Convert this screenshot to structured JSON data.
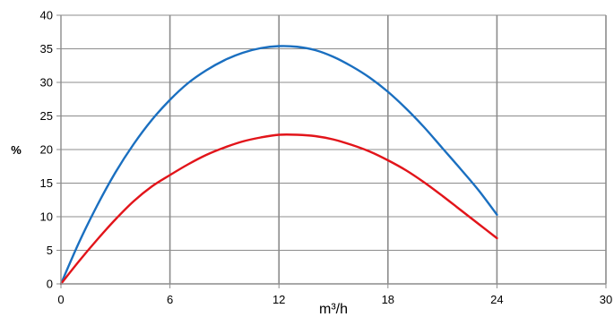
{
  "chart_data": {
    "type": "line",
    "title": "",
    "xlabel": "m³/h",
    "ylabel": "%",
    "xlim": [
      0,
      30
    ],
    "ylim": [
      0,
      40
    ],
    "xticks": [
      0,
      6,
      12,
      18,
      24,
      30
    ],
    "yticks": [
      0,
      5,
      10,
      15,
      20,
      25,
      30,
      35,
      40
    ],
    "grid": true,
    "legend": "none",
    "series": [
      {
        "color": "#1a6fc0",
        "x": [
          0,
          1,
          2,
          3,
          4,
          5,
          6,
          7,
          8,
          9,
          10,
          11,
          12,
          13,
          14,
          15,
          16,
          17,
          18,
          19,
          20,
          21,
          22,
          23,
          24
        ],
        "y": [
          0,
          6.2,
          11.7,
          16.6,
          20.8,
          24.4,
          27.4,
          29.9,
          31.8,
          33.3,
          34.4,
          35.1,
          35.4,
          35.3,
          34.8,
          33.8,
          32.4,
          30.7,
          28.6,
          26.1,
          23.3,
          20.2,
          17.1,
          13.9,
          10.3
        ]
      },
      {
        "color": "#e2141a",
        "x": [
          0,
          1,
          2,
          3,
          4,
          5,
          6,
          7,
          8,
          9,
          10,
          11,
          12,
          13,
          14,
          15,
          16,
          17,
          18,
          19,
          20,
          21,
          22,
          23,
          24
        ],
        "y": [
          0,
          3.4,
          6.6,
          9.6,
          12.3,
          14.5,
          16.2,
          17.8,
          19.2,
          20.3,
          21.2,
          21.8,
          22.2,
          22.2,
          22.0,
          21.5,
          20.7,
          19.7,
          18.4,
          16.9,
          15.1,
          13.1,
          11.0,
          8.9,
          6.8
        ]
      }
    ]
  }
}
